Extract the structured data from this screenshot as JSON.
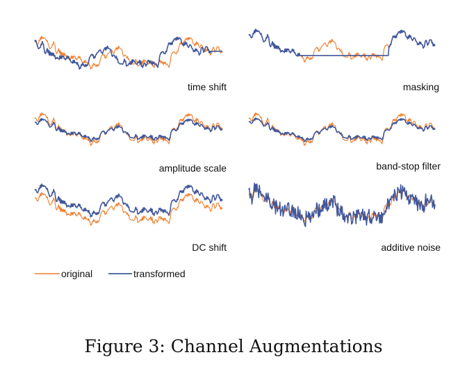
{
  "figure": {
    "caption": "Figure 3: Channel Augmentations",
    "legend": {
      "original": "original",
      "transformed": "transformed"
    },
    "colors": {
      "original": "#ef7d2a",
      "transformed": "#41579b"
    },
    "panels": [
      {
        "label": "time shift"
      },
      {
        "label": "masking"
      },
      {
        "label": "amplitude scale"
      },
      {
        "label": "band-stop filter"
      },
      {
        "label": "DC shift"
      },
      {
        "label": "additive noise"
      }
    ]
  }
}
